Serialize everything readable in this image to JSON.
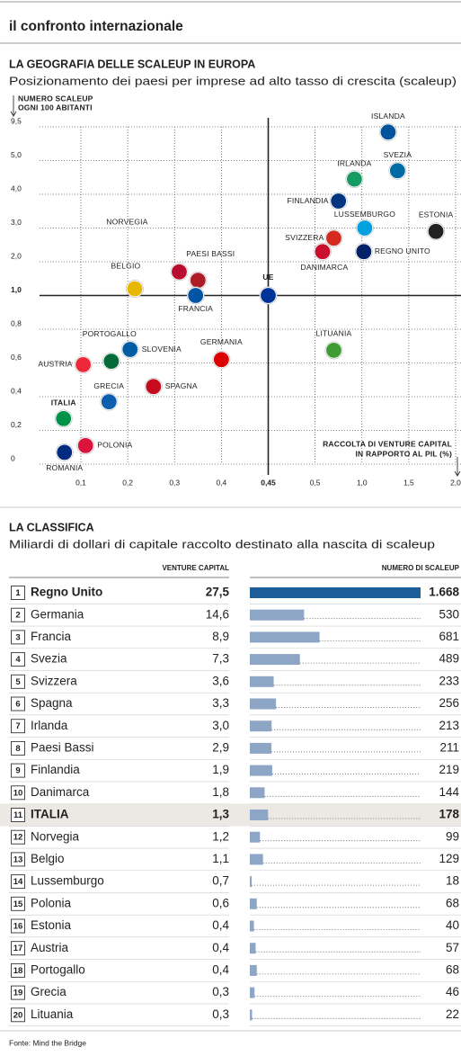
{
  "header": "il confronto internazionale",
  "source": "Fonte: Mind the Bridge",
  "chart_data": [
    {
      "type": "scatter",
      "title": "LA GEOGRAFIA DELLE SCALEUP IN EUROPA",
      "subtitle": "Posizionamento dei paesi per imprese ad alto tasso di crescita (scaleup)",
      "ylabel": [
        "NUMERO SCALEUP",
        "OGNI 100 ABITANTI"
      ],
      "xlabel": [
        "RACCOLTA DI VENTURE CAPITAL",
        "IN RAPPORTO AL PIL (%)"
      ],
      "scale": "piecewise",
      "xlim": [
        0,
        2.0
      ],
      "ylim": [
        0,
        9.5
      ],
      "xticks": [
        {
          "value": 0.1,
          "label": "0,1"
        },
        {
          "value": 0.2,
          "label": "0,2"
        },
        {
          "value": 0.3,
          "label": "0,3"
        },
        {
          "value": 0.4,
          "label": "0,4"
        },
        {
          "value": 0.45,
          "label": "0,45"
        },
        {
          "value": 0.5,
          "label": "0,5"
        },
        {
          "value": 1.0,
          "label": "1,0"
        },
        {
          "value": 1.5,
          "label": "1,5"
        },
        {
          "value": 2.0,
          "label": "2,0"
        }
      ],
      "yticks": [
        0,
        {
          "value": 0.2,
          "label": "0,2"
        },
        {
          "value": 0.4,
          "label": "0,4"
        },
        {
          "value": 0.6,
          "label": "0,6"
        },
        {
          "value": 0.8,
          "label": "0,8"
        },
        {
          "value": 1.0,
          "label": "1,0"
        },
        {
          "value": 2.0,
          "label": "2,0"
        },
        {
          "value": 3.0,
          "label": "3,0"
        },
        {
          "value": 4.0,
          "label": "4,0"
        },
        {
          "value": 5.0,
          "label": "5,0"
        },
        {
          "value": 9.5,
          "label": "9,5"
        }
      ],
      "grid": true,
      "reference_index": 13,
      "points": [
        {
          "name": "ISLANDA",
          "x": 1.28,
          "y": 8.8,
          "color": "#02529c"
        },
        {
          "name": "SVEZIA",
          "x": 1.38,
          "y": 4.7,
          "color": "#006aa7"
        },
        {
          "name": "IRLANDA",
          "x": 0.92,
          "y": 4.45,
          "color": "#169b62"
        },
        {
          "name": "FINLANDIA",
          "x": 0.75,
          "y": 3.8,
          "color": "#003580"
        },
        {
          "name": "LUSSEMBURGO",
          "x": 1.03,
          "y": 3.0,
          "color": "#00a1de"
        },
        {
          "name": "ESTONIA",
          "x": 1.79,
          "y": 2.9,
          "color": "#222222"
        },
        {
          "name": "SVIZZERA",
          "x": 0.7,
          "y": 2.7,
          "color": "#d52b1e"
        },
        {
          "name": "DANIMARCA",
          "x": 0.58,
          "y": 2.3,
          "color": "#c8102e"
        },
        {
          "name": "REGNO UNITO",
          "x": 1.02,
          "y": 2.3,
          "color": "#012169"
        },
        {
          "name": "NORVEGIA",
          "x": 0.31,
          "y": 1.7,
          "color": "#ba0c2f"
        },
        {
          "name": "PAESI BASSI",
          "x": 0.35,
          "y": 1.45,
          "color": "#ae1c28"
        },
        {
          "name": "BELGIO",
          "x": 0.215,
          "y": 1.2,
          "color": "#e8b800"
        },
        {
          "name": "FRANCIA",
          "x": 0.345,
          "y": 1.0,
          "color": "#0055a4"
        },
        {
          "name": "UE",
          "x": 0.45,
          "y": 1.0,
          "color": "#003399"
        },
        {
          "name": "LITUANIA",
          "x": 0.7,
          "y": 0.675,
          "color": "#3f9c35"
        },
        {
          "name": "GERMANIA",
          "x": 0.4,
          "y": 0.62,
          "color": "#dd0000"
        },
        {
          "name": "SLOVENIA",
          "x": 0.205,
          "y": 0.68,
          "color": "#005da4"
        },
        {
          "name": "PORTOGALLO",
          "x": 0.165,
          "y": 0.61,
          "color": "#046a38"
        },
        {
          "name": "AUSTRIA",
          "x": 0.105,
          "y": 0.59,
          "color": "#ed2939"
        },
        {
          "name": "SPAGNA",
          "x": 0.255,
          "y": 0.46,
          "color": "#c60b1e"
        },
        {
          "name": "GRECIA",
          "x": 0.16,
          "y": 0.37,
          "color": "#0d5eaf"
        },
        {
          "name": "ITALIA",
          "x": 0.063,
          "y": 0.27,
          "color": "#009246"
        },
        {
          "name": "POLONIA",
          "x": 0.11,
          "y": 0.11,
          "color": "#dc143c"
        },
        {
          "name": "ROMANIA",
          "x": 0.065,
          "y": 0.07,
          "color": "#002b7f"
        }
      ]
    },
    {
      "type": "bar",
      "title": "LA CLASSIFICA",
      "subtitle": "Miliardi di dollari di capitale raccolto destinato alla nascita di scaleup",
      "ranks": [
        1,
        2,
        3,
        4,
        5,
        6,
        7,
        8,
        9,
        10,
        11,
        12,
        13,
        14,
        15,
        16,
        17,
        18,
        19,
        20
      ],
      "categories": [
        "Regno Unito",
        "Germania",
        "Francia",
        "Svezia",
        "Svizzera",
        "Spagna",
        "Irlanda",
        "Paesi Bassi",
        "Finlandia",
        "Danimarca",
        "ITALIA",
        "Norvegia",
        "Belgio",
        "Lussemburgo",
        "Polonia",
        "Estonia",
        "Austria",
        "Portogallo",
        "Grecia",
        "Lituania"
      ],
      "series": [
        {
          "name": "VENTURE CAPITAL",
          "values": [
            27.5,
            14.6,
            8.9,
            7.3,
            3.6,
            3.3,
            3.0,
            2.9,
            1.9,
            1.8,
            1.3,
            1.2,
            1.1,
            0.7,
            0.6,
            0.4,
            0.4,
            0.4,
            0.3,
            0.3
          ],
          "value_labels": [
            "27,5",
            "14,6",
            "8,9",
            "7,3",
            "3,6",
            "3,3",
            "3,0",
            "2,9",
            "1,9",
            "1,8",
            "1,3",
            "1,2",
            "1,1",
            "0,7",
            "0,6",
            "0,4",
            "0,4",
            "0,4",
            "0,3",
            "0,3"
          ]
        },
        {
          "name": "NUMERO DI SCALEUP",
          "values": [
            1668,
            530,
            681,
            489,
            233,
            256,
            213,
            211,
            219,
            144,
            178,
            99,
            129,
            18,
            68,
            40,
            57,
            68,
            46,
            22
          ],
          "value_labels": [
            "1.668",
            "530",
            "681",
            "489",
            "233",
            "256",
            "213",
            "211",
            "219",
            "144",
            "178",
            "99",
            "129",
            "18",
            "68",
            "40",
            "57",
            "68",
            "46",
            "22"
          ],
          "color": "#8ea6c6",
          "leader_color": "#1d5e98"
        }
      ],
      "xlim": [
        0,
        1668
      ],
      "bold_rows": [
        0,
        10
      ],
      "shaded_rows": [
        10
      ]
    }
  ]
}
